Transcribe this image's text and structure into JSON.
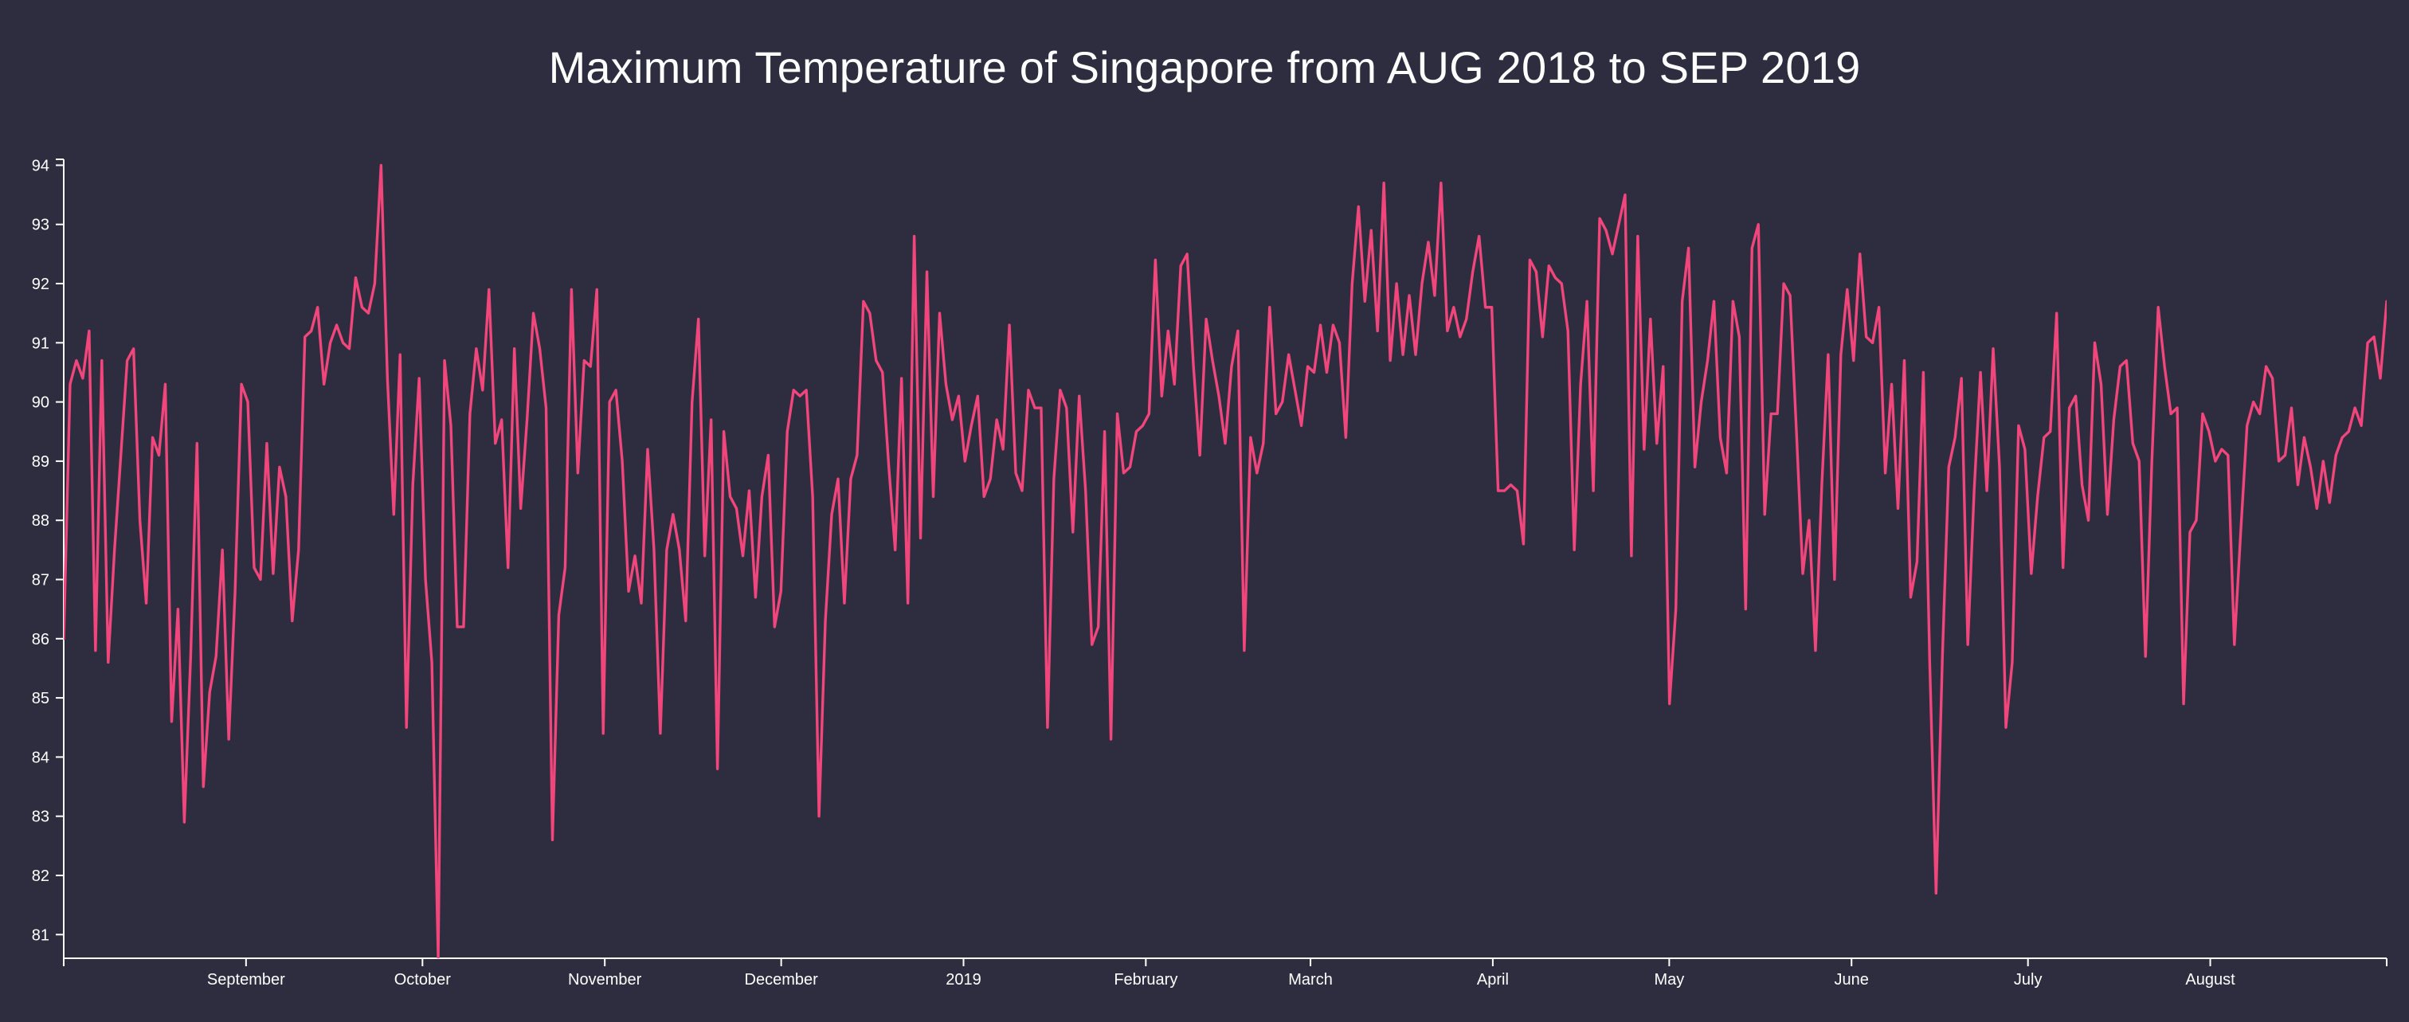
{
  "chart_data": {
    "type": "line",
    "title": "Maximum Temperature of Singapore from AUG 2018 to SEP 2019",
    "xlabel": "",
    "ylabel": "",
    "x_start": "2018-08-01",
    "x_end": "2019-08-31",
    "ylim": [
      80.6,
      94.1
    ],
    "y_ticks": [
      81,
      82,
      83,
      84,
      85,
      86,
      87,
      88,
      89,
      90,
      91,
      92,
      93,
      94
    ],
    "x_ticks": [
      {
        "date": "2018-09-01",
        "label": "September"
      },
      {
        "date": "2018-10-01",
        "label": "October"
      },
      {
        "date": "2018-11-01",
        "label": "November"
      },
      {
        "date": "2018-12-01",
        "label": "December"
      },
      {
        "date": "2019-01-01",
        "label": "2019"
      },
      {
        "date": "2019-02-01",
        "label": "February"
      },
      {
        "date": "2019-03-01",
        "label": "March"
      },
      {
        "date": "2019-04-01",
        "label": "April"
      },
      {
        "date": "2019-05-01",
        "label": "May"
      },
      {
        "date": "2019-06-01",
        "label": "June"
      },
      {
        "date": "2019-07-01",
        "label": "July"
      },
      {
        "date": "2019-08-01",
        "label": "August"
      }
    ],
    "grid": false,
    "legend": "none",
    "series": [
      {
        "color": "#f0467b",
        "values": [
          86.0,
          90.3,
          90.7,
          90.4,
          91.2,
          85.8,
          90.7,
          85.6,
          87.5,
          89.1,
          90.7,
          90.9,
          88.0,
          86.6,
          89.4,
          89.1,
          90.3,
          84.6,
          86.5,
          82.9,
          85.7,
          89.3,
          83.5,
          85.1,
          85.7,
          87.5,
          84.3,
          86.8,
          90.3,
          90.0,
          87.2,
          87.0,
          89.3,
          87.1,
          88.9,
          88.4,
          86.3,
          87.5,
          91.1,
          91.2,
          91.6,
          90.3,
          91.0,
          91.3,
          91.0,
          90.9,
          92.1,
          91.6,
          91.5,
          92.0,
          94.0,
          90.4,
          88.1,
          90.8,
          84.5,
          88.6,
          90.4,
          87.0,
          85.6,
          80.6,
          90.7,
          89.6,
          86.2,
          86.2,
          89.8,
          90.9,
          90.2,
          91.9,
          89.3,
          89.7,
          87.2,
          90.9,
          88.2,
          89.7,
          91.5,
          90.9,
          89.9,
          82.6,
          86.4,
          87.2,
          91.9,
          88.8,
          90.7,
          90.6,
          91.9,
          84.4,
          90.0,
          90.2,
          89.0,
          86.8,
          87.4,
          86.6,
          89.2,
          87.5,
          84.4,
          87.5,
          88.1,
          87.5,
          86.3,
          90.0,
          91.4,
          87.4,
          89.7,
          83.8,
          89.5,
          88.4,
          88.2,
          87.4,
          88.5,
          86.7,
          88.4,
          89.1,
          86.2,
          86.8,
          89.5,
          90.2,
          90.1,
          90.2,
          88.4,
          83.0,
          86.3,
          88.1,
          88.7,
          86.6,
          88.7,
          89.1,
          91.7,
          91.5,
          90.7,
          90.5,
          88.9,
          87.5,
          90.4,
          86.6,
          92.8,
          87.7,
          92.2,
          88.4,
          91.5,
          90.3,
          89.7,
          90.1,
          89.0,
          89.6,
          90.1,
          88.4,
          88.7,
          89.7,
          89.2,
          91.3,
          88.8,
          88.5,
          90.2,
          89.9,
          89.9,
          84.5,
          88.7,
          90.2,
          89.9,
          87.8,
          90.1,
          88.5,
          85.9,
          86.2,
          89.5,
          84.3,
          89.8,
          88.8,
          88.9,
          89.5,
          89.6,
          89.8,
          92.4,
          90.1,
          91.2,
          90.3,
          92.3,
          92.5,
          90.6,
          89.1,
          91.4,
          90.7,
          90.1,
          89.3,
          90.6,
          91.2,
          85.8,
          89.4,
          88.8,
          89.3,
          91.6,
          89.8,
          90.0,
          90.8,
          90.2,
          89.6,
          90.6,
          90.5,
          91.3,
          90.5,
          91.3,
          91.0,
          89.4,
          92.0,
          93.3,
          91.7,
          92.9,
          91.2,
          93.7,
          90.7,
          92.0,
          90.8,
          91.8,
          90.8,
          92.0,
          92.7,
          91.8,
          93.7,
          91.2,
          91.6,
          91.1,
          91.4,
          92.2,
          92.8,
          91.6,
          91.6,
          88.5,
          88.5,
          88.6,
          88.5,
          87.6,
          92.4,
          92.2,
          91.1,
          92.3,
          92.1,
          92.0,
          91.2,
          87.5,
          90.3,
          91.7,
          88.5,
          93.1,
          92.9,
          92.5,
          93.0,
          93.5,
          87.4,
          92.8,
          89.2,
          91.4,
          89.3,
          90.6,
          84.9,
          86.5,
          91.7,
          92.6,
          88.9,
          90.0,
          90.7,
          91.7,
          89.4,
          88.8,
          91.7,
          91.1,
          86.5,
          92.6,
          93.0,
          88.1,
          89.8,
          89.8,
          92.0,
          91.8,
          89.5,
          87.1,
          88.0,
          85.8,
          88.6,
          90.8,
          87.0,
          90.8,
          91.9,
          90.7,
          92.5,
          91.1,
          91.0,
          91.6,
          88.8,
          90.3,
          88.2,
          90.7,
          86.7,
          87.3,
          90.5,
          85.6,
          81.7,
          85.7,
          88.9,
          89.4,
          90.4,
          85.9,
          88.5,
          90.5,
          88.5,
          90.9,
          88.9,
          84.5,
          85.6,
          89.6,
          89.2,
          87.1,
          88.4,
          89.4,
          89.5,
          91.5,
          87.2,
          89.9,
          90.1,
          88.6,
          88.0,
          91.0,
          90.3,
          88.1,
          89.7,
          90.6,
          90.7,
          89.3,
          89.0,
          85.7,
          89.0,
          91.6,
          90.6,
          89.8,
          89.9,
          84.9,
          87.8,
          88.0,
          89.8,
          89.5,
          89.0,
          89.2,
          89.1,
          85.9,
          87.8,
          89.6,
          90.0,
          89.8,
          90.6,
          90.4,
          89.0,
          89.1,
          89.9,
          88.6,
          89.4,
          88.9,
          88.2,
          89.0,
          88.3,
          89.1,
          89.4,
          89.5,
          89.9,
          89.6,
          91.0,
          91.1,
          90.4,
          91.7
        ]
      }
    ]
  }
}
